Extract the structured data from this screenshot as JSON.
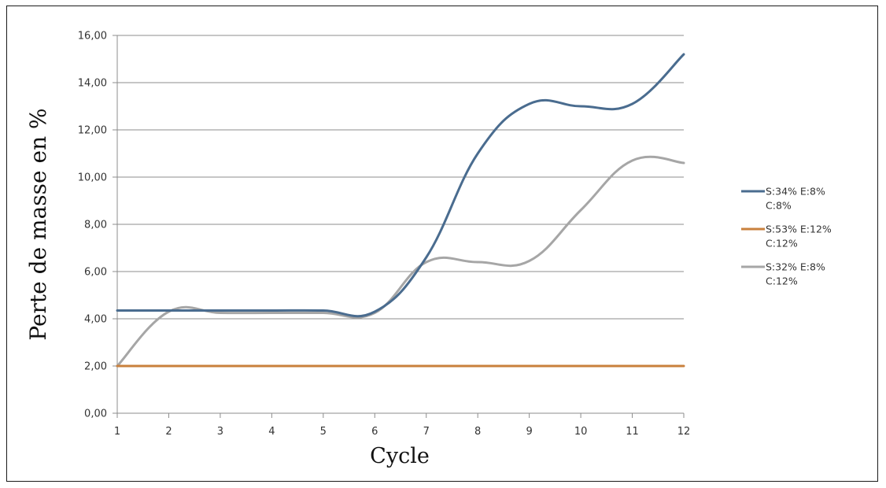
{
  "chart_data": {
    "type": "line",
    "title": "",
    "xlabel": "Cycle",
    "ylabel": "Perte  de masse en %",
    "x": [
      1,
      2,
      3,
      4,
      5,
      6,
      7,
      8,
      9,
      10,
      11,
      12
    ],
    "xlim": [
      1,
      12
    ],
    "ylim": [
      0,
      16
    ],
    "yticks": [
      "0,00",
      "2,00",
      "4,00",
      "6,00",
      "8,00",
      "10,00",
      "12,00",
      "14,00",
      "16,00"
    ],
    "xticks": [
      "1",
      "2",
      "3",
      "4",
      "5",
      "6",
      "7",
      "8",
      "9",
      "10",
      "11",
      "12"
    ],
    "grid": true,
    "legend_position": "right",
    "series": [
      {
        "name_lines": [
          "S:34% E:8%",
          "C:8%"
        ],
        "color": "#4a6c8f",
        "values": [
          4.35,
          4.35,
          4.35,
          4.35,
          4.35,
          4.3,
          6.6,
          11.0,
          13.1,
          13.0,
          13.1,
          15.2
        ]
      },
      {
        "name_lines": [
          "S:53% E:12%",
          "C:12%"
        ],
        "color": "#c9803d",
        "values": [
          2.0,
          2.0,
          2.0,
          2.0,
          2.0,
          2.0,
          2.0,
          2.0,
          2.0,
          2.0,
          2.0,
          2.0
        ]
      },
      {
        "name_lines": [
          "S:32% E:8%",
          "C:12%"
        ],
        "color": "#a6a6a6",
        "values": [
          2.0,
          4.3,
          4.25,
          4.25,
          4.25,
          4.25,
          6.4,
          6.4,
          6.45,
          8.6,
          10.7,
          10.6
        ]
      }
    ]
  }
}
